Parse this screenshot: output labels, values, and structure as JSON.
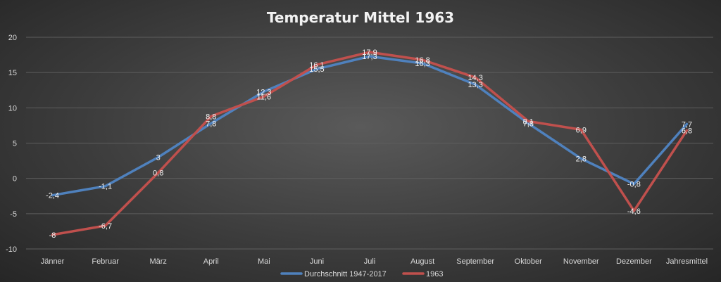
{
  "chart_data": {
    "type": "line",
    "title": "Temperatur Mittel 1963",
    "categories": [
      "Jänner",
      "Februar",
      "März",
      "April",
      "Mai",
      "Juni",
      "Juli",
      "August",
      "September",
      "Oktober",
      "November",
      "Dezember",
      "Jahresmittel"
    ],
    "ylim": [
      -10,
      20
    ],
    "yticks": [
      -10,
      -5,
      0,
      5,
      10,
      15,
      20
    ],
    "ytick_labels": [
      "-10",
      "-5",
      "0",
      "5",
      "10",
      "15",
      "20"
    ],
    "grid": true,
    "legend_position": "bottom",
    "series": [
      {
        "name": "Durchschnitt 1947-2017",
        "color": "#4f81bd",
        "values": [
          -2.4,
          -1.1,
          3,
          7.8,
          12.3,
          15.5,
          17.3,
          16.3,
          13.3,
          7.8,
          2.8,
          -0.8,
          7.7
        ],
        "labels": [
          "-2,4",
          "-1,1",
          "3",
          "7,8",
          "12,3",
          "15,5",
          "17,3",
          "16,3",
          "13,3",
          "7,8",
          "2,8",
          "-0,8",
          "7,7"
        ]
      },
      {
        "name": "1963",
        "color": "#c0504d",
        "values": [
          -8,
          -6.7,
          0.8,
          8.8,
          11.6,
          16.1,
          17.9,
          16.8,
          14.3,
          8.1,
          6.9,
          -4.6,
          6.8
        ],
        "labels": [
          "-8",
          "-6,7",
          "0,8",
          "8,8",
          "11,6",
          "16,1",
          "17,9",
          "16,8",
          "14,3",
          "8,1",
          "6,9",
          "-4,6",
          "6,8"
        ]
      }
    ]
  }
}
